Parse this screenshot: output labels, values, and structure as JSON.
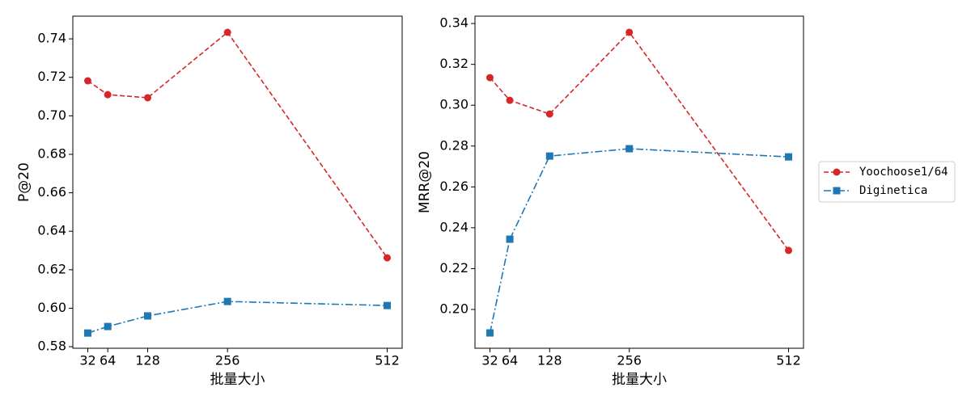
{
  "chart_data": [
    {
      "type": "line",
      "x_label": "批量大小",
      "y_label": "P@20",
      "x": [
        32,
        64,
        128,
        256,
        512
      ],
      "xlim": [
        8,
        536
      ],
      "xticks": [
        32,
        64,
        128,
        256,
        512
      ],
      "ylim": [
        0.5792,
        0.7518
      ],
      "yticks": [
        0.58,
        {
          "value": 0.6,
          "label": "0.60"
        },
        0.62,
        0.64,
        0.66,
        0.68,
        {
          "value": 0.7,
          "label": "0.70"
        },
        0.72,
        0.74
      ],
      "series": [
        {
          "name": "Yoochoose1/64",
          "color": "#d62728",
          "marker": "circle",
          "linestyle": "dashed",
          "values": [
            0.7182,
            0.711,
            0.7094,
            0.7434,
            0.6262
          ]
        },
        {
          "name": "Diginetica",
          "color": "#1f77b4",
          "marker": "square",
          "linestyle": "dashdot",
          "values": [
            0.5871,
            0.5905,
            0.596,
            0.6035,
            0.6014
          ]
        }
      ]
    },
    {
      "type": "line",
      "x_label": "批量大小",
      "y_label": "MRR@20",
      "x": [
        32,
        64,
        128,
        256,
        512
      ],
      "xlim": [
        8,
        536
      ],
      "xticks": [
        32,
        64,
        128,
        256,
        512
      ],
      "ylim": [
        0.181,
        0.3436
      ],
      "yticks": [
        {
          "value": 0.2,
          "label": "0.20"
        },
        0.22,
        0.24,
        0.26,
        0.28,
        {
          "value": 0.3,
          "label": "0.30"
        },
        0.32,
        0.34
      ],
      "legend": "outside right",
      "series": [
        {
          "name": "Yoochoose1/64",
          "color": "#d62728",
          "marker": "circle",
          "linestyle": "dashed",
          "values": [
            0.3135,
            0.3024,
            0.2957,
            0.3357,
            0.2289
          ]
        },
        {
          "name": "Diginetica",
          "color": "#1f77b4",
          "marker": "square",
          "linestyle": "dashdot",
          "values": [
            0.1885,
            0.2344,
            0.2751,
            0.2787,
            0.2747
          ]
        }
      ]
    }
  ]
}
